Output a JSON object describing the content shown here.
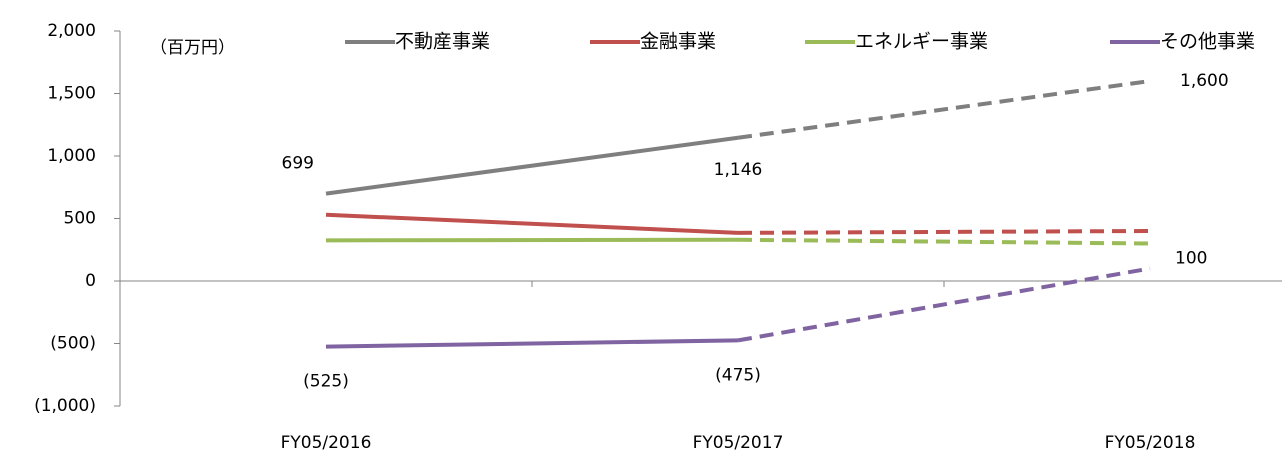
{
  "chart_data": {
    "type": "line",
    "ylabel": "（百万円）",
    "categories": [
      "FY05/2016",
      "FY05/2017",
      "FY05/2018"
    ],
    "series": [
      {
        "name": "不動産事業",
        "color": "#7f7f7f",
        "values": [
          699,
          1146,
          1600
        ],
        "value_labels": [
          "699",
          "1,146",
          "1,600"
        ]
      },
      {
        "name": "金融事業",
        "color": "#c0504d",
        "values": [
          530,
          385,
          400
        ]
      },
      {
        "name": "エネルギー事業",
        "color": "#9bbb59",
        "values": [
          325,
          330,
          300
        ]
      },
      {
        "name": "その他事業",
        "color": "#8064a2",
        "values": [
          -525,
          -475,
          100
        ],
        "value_labels": [
          "(525)",
          "(475)",
          "100"
        ]
      }
    ],
    "dashed_from": 1,
    "ylim": [
      -1000,
      2000
    ],
    "yticks": [
      {
        "value": -1000,
        "label": "(1,000)"
      },
      {
        "value": -500,
        "label": "(500)"
      },
      0,
      500,
      {
        "value": 1000,
        "label": "1,000"
      },
      {
        "value": 1500,
        "label": "1,500"
      },
      {
        "value": 2000,
        "label": "2,000"
      }
    ],
    "legend": "top"
  }
}
